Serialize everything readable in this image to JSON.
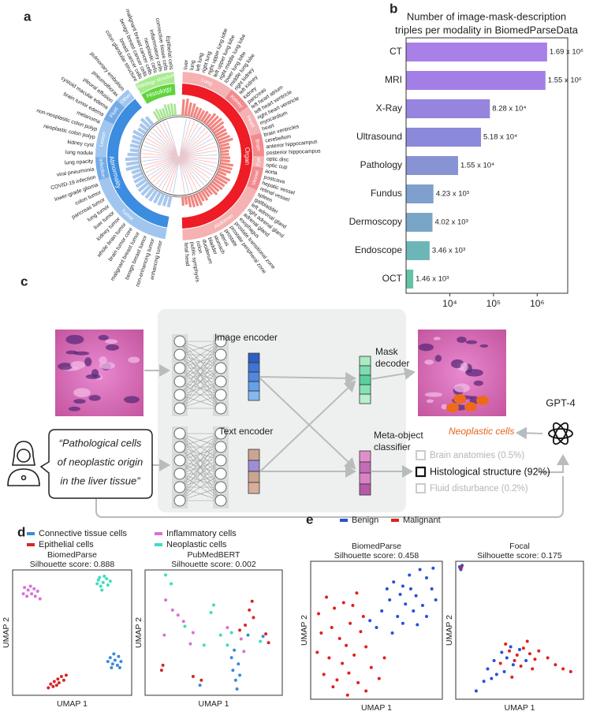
{
  "chart_data": [
    {
      "type": "radial_bar",
      "panel": "a",
      "ylim": [
        0,
        5
      ],
      "groups": [
        {
          "name": "Organ",
          "color": "#ee1c25",
          "bar_color": "#f1857f",
          "band_colors": [
            "#f6b1b3",
            "#f28a8e"
          ],
          "subgroups": [
            {
              "name": "Lung",
              "labels": [
                "liver",
                "lung",
                "left lung",
                "right lung",
                "right upper lung lobe",
                "left upper lung lobe",
                "right middle lung lobe",
                "lower lung lobe",
                "middle lung lobe"
              ],
              "values": [
                4.2,
                4.5,
                3.6,
                3.6,
                3.0,
                3.0,
                2.8,
                3.1,
                2.9
              ]
            },
            {
              "name": "Kidney",
              "labels": [
                "right kidney",
                "left kidney",
                "kidney",
                "pancreas"
              ],
              "values": [
                3.8,
                3.8,
                4.0,
                3.8
              ]
            },
            {
              "name": "Heart",
              "labels": [
                "left heart atrium",
                "left heart ventricle",
                "right heart ventricle",
                "myocardium",
                "heart"
              ],
              "values": [
                3.2,
                3.3,
                3.1,
                3.4,
                3.9
              ]
            },
            {
              "name": "Brain",
              "labels": [
                "brain ventricles",
                "cerebellum",
                "anterior hippocampus",
                "posterior hippocampus"
              ],
              "values": [
                2.6,
                2.7,
                2.2,
                2.2
              ]
            },
            {
              "name": "Eye",
              "labels": [
                "optic disc",
                "optic cup"
              ],
              "values": [
                2.5,
                2.5
              ]
            },
            {
              "name": "Vessel",
              "labels": [
                "aorta",
                "postcava",
                "hepatic vessel",
                "retinal vessel"
              ],
              "values": [
                3.5,
                3.4,
                3.3,
                2.4
              ]
            },
            {
              "name": "Abdomen",
              "labels": [
                "spleen",
                "gallbladder",
                "left adrenal gland",
                "right adrenal gland",
                "adrenal gland",
                "esophagus",
                "prostate transitional zone",
                "prostate peripheral zone",
                "prostate",
                "uterus",
                "stomach",
                "bladder",
                "duodenum",
                "colon",
                "public symphysis",
                "fetal head"
              ],
              "values": [
                3.9,
                3.6,
                3.4,
                3.4,
                3.0,
                3.3,
                2.4,
                2.4,
                2.9,
                2.6,
                3.4,
                3.2,
                3.2,
                3.0,
                2.1,
                2.3
              ]
            }
          ]
        },
        {
          "name": "Abnormality",
          "color": "#3c8ce0",
          "bar_color": "#a7c8ec",
          "band_colors": [
            "#a0c6ef",
            "#74abe7"
          ],
          "subgroups": [
            {
              "name": "Tumor",
              "labels": [
                "enhancing tumor",
                "non-enhancing tumor",
                "benign breast tumor",
                "malignant breast tumor",
                "brain tumor core",
                "whole brain tumor",
                "kidney tumor",
                "liver tumor",
                "lung tumor",
                "pancreas tumor",
                "colon tumor",
                "lower-grade glioma"
              ],
              "values": [
                3.0,
                3.0,
                3.3,
                3.2,
                3.4,
                3.4,
                3.5,
                3.4,
                3.2,
                3.0,
                2.8,
                2.6
              ]
            },
            {
              "name": "Infection",
              "labels": [
                "COVID-19 infection",
                "viral pneumonia",
                "lung opacity"
              ],
              "values": [
                3.8,
                3.5,
                3.6
              ]
            },
            {
              "name": "Lesion",
              "labels": [
                "lung nodule",
                "kidney cyst",
                "neoplastic colon polyp",
                "non-neoplastic colon polyp",
                "melanoma"
              ],
              "values": [
                3.0,
                2.4,
                2.6,
                2.5,
                2.7
              ]
            },
            {
              "name": "Fluid",
              "labels": [
                "brain tumor edema",
                "cystoid macular edema",
                "pleural effusion"
              ],
              "values": [
                3.1,
                2.3,
                2.6
              ]
            },
            {
              "name": "Other",
              "labels": [
                "pneumothorax",
                "pulmonary embolism"
              ],
              "values": [
                3.3,
                2.8
              ]
            }
          ]
        },
        {
          "name": "Histology",
          "color": "#5fd43c",
          "bar_color": "#a9e596",
          "band_colors": [
            "#a8eb8f",
            "#a8eb8f"
          ],
          "subgroups": [
            {
              "name": "Histology structure",
              "labels": [
                "colon glandular structure",
                "breast cancer cells",
                "benign breast cancer cells",
                "malignant breast cancer cells",
                "neoplastic cells",
                "inflammatory cells",
                "connective tissue cells",
                "Epithelial cells"
              ],
              "values": [
                2.8,
                3.1,
                2.6,
                2.6,
                3.4,
                3.2,
                3.3,
                3.0
              ]
            }
          ]
        }
      ]
    },
    {
      "type": "bar",
      "panel": "b",
      "orientation": "horizontal",
      "title": [
        "Number of image-mask-description",
        "triples per modality in BiomedParseData"
      ],
      "categories": [
        "CT",
        "MRI",
        "X-Ray",
        "Ultrasound",
        "Pathology",
        "Fundus",
        "Dermoscopy",
        "Endoscope",
        "OCT"
      ],
      "values": [
        1690000,
        1550000,
        82800,
        51800,
        15500,
        4230,
        4020,
        3460,
        1460
      ],
      "value_labels": [
        "1.69 x 10⁶",
        "1.55 x 10⁶",
        "8.28 x 10⁴",
        "5.18 x 10⁴",
        "1.55 x 10⁴",
        "4.23 x 10³",
        "4.02 x 10³",
        "3.46 x 10³",
        "1.46 x 10³"
      ],
      "colors": [
        "#a97fe8",
        "#a37ee6",
        "#9784df",
        "#8b89da",
        "#8893d4",
        "#7fa0cc",
        "#79a6c6",
        "#6cb6b8",
        "#64c3a6"
      ],
      "xscale": "log",
      "xlim": [
        1000,
        5000000
      ],
      "xticks": [
        {
          "value": 10000,
          "label": "10⁴"
        },
        {
          "value": 100000,
          "label": "10⁵"
        },
        {
          "value": 1000000,
          "label": "10⁶"
        }
      ]
    },
    {
      "type": "scatter",
      "panel": "d",
      "legend": [
        {
          "name": "Connective tissue cells",
          "color": "#3b8ad9"
        },
        {
          "name": "Epithelial cells",
          "color": "#d62728"
        },
        {
          "name": "Inflammatory cells",
          "color": "#da70d6"
        },
        {
          "name": "Neoplastic cells",
          "color": "#3fdcc0"
        }
      ],
      "plots": [
        {
          "title": "BiomedParse",
          "subtitle": "Silhouette score: 0.888",
          "xlabel": "UMAP 1",
          "ylabel": "UMAP 2",
          "xlim": [
            0,
            10
          ],
          "ylim": [
            0,
            10
          ],
          "series": [
            {
              "x": [
                8.2,
                8.6,
                8.9,
                8.4,
                8.8,
                9.1,
                8.0,
                8.5,
                9.0,
                8.3
              ],
              "values": [
                3.0,
                2.8,
                3.1,
                2.5,
                2.4,
                2.7,
                2.7,
                3.3,
                2.2,
                2.2
              ]
            },
            {
              "x": [
                3.2,
                3.5,
                3.8,
                4.1,
                3.4,
                3.9,
                4.3,
                3.0,
                3.7,
                4.5
              ],
              "values": [
                0.9,
                1.1,
                1.3,
                1.5,
                0.7,
                1.0,
                1.2,
                0.6,
                0.8,
                1.6
              ]
            },
            {
              "x": [
                1.0,
                1.3,
                1.6,
                1.9,
                1.2,
                2.1,
                1.5,
                0.9,
                1.8,
                2.3
              ],
              "values": [
                8.6,
                8.4,
                8.1,
                7.9,
                7.9,
                8.3,
                8.7,
                8.1,
                8.5,
                7.7
              ]
            },
            {
              "x": [
                7.2,
                7.6,
                7.9,
                7.4,
                8.0,
                7.1,
                7.7,
                7.5,
                8.2,
                7.3
              ],
              "values": [
                9.2,
                9.0,
                9.3,
                8.7,
                8.8,
                8.9,
                9.5,
                8.4,
                9.1,
                9.4
              ]
            }
          ]
        },
        {
          "title": "PubMedBERT",
          "subtitle": "Silhouette score: 0.002",
          "xlabel": "UMAP 1",
          "ylabel": "UMAP 2",
          "xlim": [
            0,
            10
          ],
          "ylim": [
            0,
            10
          ],
          "series": [
            {
              "x": [
                6.4,
                6.6,
                6.8,
                6.3,
                6.9,
                4.0,
                7.5,
                8.6,
                6.7,
                6.5
              ],
              "values": [
                2.0,
                1.2,
                2.5,
                3.0,
                1.6,
                0.8,
                4.8,
                4.7,
                0.5,
                3.6
              ]
            },
            {
              "x": [
                7.6,
                7.9,
                7.3,
                1.3,
                1.2,
                3.5,
                9.0,
                8.8,
                7.8,
                4.1,
                6.9
              ],
              "values": [
                6.8,
                6.2,
                5.6,
                2.4,
                2.0,
                1.5,
                4.2,
                4.9,
                7.5,
                1.2,
                5.2
              ]
            },
            {
              "x": [
                2.4,
                2.8,
                1.4,
                3.5,
                3.3,
                1.5,
                6.0,
                7.0,
                2.0,
                7.2
              ],
              "values": [
                6.4,
                5.9,
                4.8,
                5.0,
                4.1,
                7.6,
                5.4,
                4.5,
                6.8,
                3.5
              ]
            },
            {
              "x": [
                1.9,
                1.5,
                5.0,
                4.8,
                6.3,
                5.5,
                4.3,
                2.9,
                8.4,
                6.0
              ],
              "values": [
                8.9,
                9.6,
                7.2,
                6.6,
                5.0,
                4.8,
                4.0,
                5.5,
                4.3,
                4.0
              ]
            }
          ]
        }
      ]
    },
    {
      "type": "scatter",
      "panel": "e",
      "legend": [
        {
          "name": "Benign",
          "color": "#2a4fd8"
        },
        {
          "name": "Malignant",
          "color": "#e0201e"
        }
      ],
      "plots": [
        {
          "title": "BiomedParse",
          "subtitle": "Silhouette score: 0.458",
          "xlabel": "UMAP 1",
          "ylabel": "UMAP 2",
          "xlim": [
            0,
            10
          ],
          "ylim": [
            0,
            10
          ],
          "series": [
            {
              "x": [
                6.3,
                7.0,
                7.5,
                8.3,
                8.8,
                9.2,
                8.0,
                7.2,
                6.6,
                7.8,
                8.5,
                9.5,
                6.0,
                5.4,
                5.0,
                6.2,
                7.0,
                8.1,
                9.3,
                5.8,
                6.8,
                4.5,
                8.8,
                7.6
              ],
              "values": [
                8.5,
                8.2,
                9.0,
                9.4,
                8.8,
                8.0,
                7.5,
                6.9,
                6.0,
                6.4,
                6.8,
                7.2,
                7.2,
                6.4,
                5.2,
                4.8,
                5.5,
                5.4,
                9.5,
                8.0,
                7.6,
                5.7,
                6.0,
                8.0
              ]
            },
            {
              "x": [
                0.6,
                1.2,
                1.8,
                2.5,
                3.2,
                0.8,
                1.6,
                2.2,
                3.0,
                3.8,
                0.5,
                1.4,
                2.4,
                3.3,
                4.2,
                1.0,
                2.0,
                2.9,
                3.6,
                4.6,
                5.2,
                5.6,
                4.0,
                2.7,
                1.7,
                2.8,
                4.2,
                3.5
              ],
              "values": [
                6.2,
                7.4,
                6.6,
                7.0,
                6.8,
                4.8,
                5.2,
                4.4,
                5.5,
                4.9,
                3.4,
                3.0,
                2.6,
                3.2,
                3.8,
                1.8,
                1.4,
                1.9,
                1.2,
                2.3,
                1.5,
                3.0,
                6.0,
                3.9,
                0.9,
                0.3,
                0.6,
                7.7
              ]
            }
          ]
        },
        {
          "title": "Focal",
          "subtitle": "Silhouette score: 0.175",
          "xlabel": "UMAP 1",
          "ylabel": "UMAP 2",
          "xlim": [
            0,
            10
          ],
          "ylim": [
            0,
            10
          ],
          "series": [
            {
              "x": [
                0.3,
                0.4,
                0.5,
                0.35,
                2.5,
                3.0,
                3.6,
                3.2,
                2.2,
                1.6,
                4.0,
                4.5,
                3.8,
                2.8,
                5.0,
                4.3,
                5.5
              ],
              "values": [
                9.6,
                9.4,
                9.7,
                9.5,
                2.2,
                2.8,
                3.4,
                1.8,
                1.3,
                0.6,
                3.0,
                2.5,
                2.0,
                1.5,
                3.6,
                3.8,
                2.8
              ]
            },
            {
              "x": [
                0.45,
                4.2,
                4.8,
                5.3,
                5.8,
                6.2,
                4.6,
                5.1,
                3.5,
                6.5,
                7.2,
                7.8,
                8.4,
                9.0,
                3.9,
                5.6,
                6.0,
                4.4
              ],
              "values": [
                9.55,
                3.5,
                3.2,
                3.7,
                3.3,
                2.9,
                2.8,
                2.4,
                2.6,
                3.5,
                3.0,
                2.5,
                2.2,
                2.0,
                4.0,
                4.2,
                2.2,
                1.6
              ]
            }
          ]
        }
      ]
    }
  ],
  "diagram": {
    "panel": "c",
    "image_encoder": "Image encoder",
    "text_encoder": "Text encoder",
    "mask_decoder": [
      "Mask",
      "decoder"
    ],
    "classifier": [
      "Meta-object",
      "classifier"
    ],
    "gpt": "GPT-4",
    "output": "Neoplastic cells",
    "prompt": [
      "“Pathological cells",
      "of neoplastic origin",
      "in the liver tissue”"
    ],
    "options": [
      "Brain anatomies (0.5%)",
      "Histological structure (92%)",
      "Fluid disturbance (0.2%)"
    ]
  }
}
